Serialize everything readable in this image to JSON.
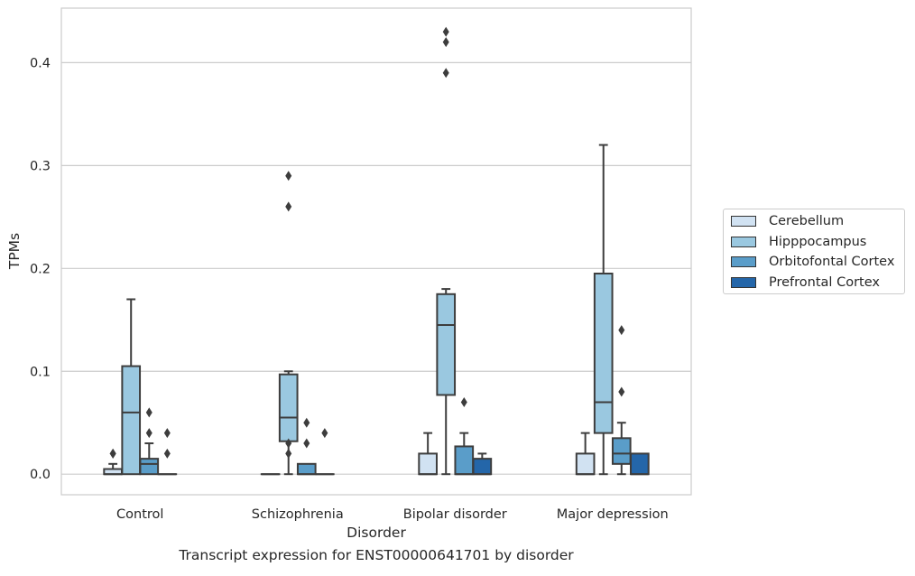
{
  "chart_data": {
    "type": "box",
    "xlabel": "Disorder",
    "ylabel": "TPMs",
    "caption": "Transcript expression for ENST00000641701 by disorder",
    "ylim": [
      -0.02,
      0.453
    ],
    "yticks": [
      0.0,
      0.1,
      0.2,
      0.3,
      0.4
    ],
    "ytick_labels": [
      "0.0",
      "0.1",
      "0.2",
      "0.3",
      "0.4"
    ],
    "grid": "horizontal",
    "legend_position": "right, outside",
    "categories": [
      "Control",
      "Schizophrenia",
      "Bipolar disorder",
      "Major depression"
    ],
    "series": [
      {
        "name": "Cerebellum",
        "color": "#d1e2f2",
        "boxes": [
          {
            "q1": 0.0,
            "median": 0.0,
            "q3": 0.005,
            "whisker_low": 0.0,
            "whisker_high": 0.01,
            "outliers": [
              0.02,
              0.02
            ]
          },
          {
            "q1": 0.0,
            "median": 0.0,
            "q3": 0.0,
            "whisker_low": 0.0,
            "whisker_high": 0.0,
            "outliers": []
          },
          {
            "q1": 0.0,
            "median": 0.0,
            "q3": 0.02,
            "whisker_low": 0.0,
            "whisker_high": 0.04,
            "outliers": []
          },
          {
            "q1": 0.0,
            "median": 0.0,
            "q3": 0.02,
            "whisker_low": 0.0,
            "whisker_high": 0.04,
            "outliers": []
          }
        ]
      },
      {
        "name": "Hipppocampus",
        "color": "#9ac8e0",
        "boxes": [
          {
            "q1": 0.0,
            "median": 0.06,
            "q3": 0.105,
            "whisker_low": 0.0,
            "whisker_high": 0.17,
            "outliers": []
          },
          {
            "q1": 0.032,
            "median": 0.055,
            "q3": 0.097,
            "whisker_low": 0.0,
            "whisker_high": 0.1,
            "outliers": [
              0.02,
              0.03,
              0.26,
              0.29
            ]
          },
          {
            "q1": 0.077,
            "median": 0.145,
            "q3": 0.175,
            "whisker_low": 0.0,
            "whisker_high": 0.18,
            "outliers": [
              0.39,
              0.42,
              0.43
            ]
          },
          {
            "q1": 0.04,
            "median": 0.07,
            "q3": 0.195,
            "whisker_low": 0.0,
            "whisker_high": 0.32,
            "outliers": []
          }
        ]
      },
      {
        "name": "Orbitofontal Cortex",
        "color": "#5a9dc9",
        "boxes": [
          {
            "q1": 0.0,
            "median": 0.01,
            "q3": 0.015,
            "whisker_low": 0.0,
            "whisker_high": 0.03,
            "outliers": [
              0.04,
              0.06
            ]
          },
          {
            "q1": 0.0,
            "median": 0.0,
            "q3": 0.01,
            "whisker_low": 0.0,
            "whisker_high": 0.01,
            "outliers": [
              0.03,
              0.05
            ]
          },
          {
            "q1": 0.0,
            "median": 0.0,
            "q3": 0.027,
            "whisker_low": 0.0,
            "whisker_high": 0.04,
            "outliers": [
              0.07
            ]
          },
          {
            "q1": 0.01,
            "median": 0.02,
            "q3": 0.035,
            "whisker_low": 0.0,
            "whisker_high": 0.05,
            "outliers": [
              0.08,
              0.14
            ]
          }
        ]
      },
      {
        "name": "Prefrontal Cortex",
        "color": "#2466a9",
        "boxes": [
          {
            "q1": 0.0,
            "median": 0.0,
            "q3": 0.0,
            "whisker_low": 0.0,
            "whisker_high": 0.0,
            "outliers": [
              0.02,
              0.04
            ]
          },
          {
            "q1": 0.0,
            "median": 0.0,
            "q3": 0.0,
            "whisker_low": 0.0,
            "whisker_high": 0.0,
            "outliers": [
              0.04
            ]
          },
          {
            "q1": 0.0,
            "median": 0.0,
            "q3": 0.015,
            "whisker_low": 0.0,
            "whisker_high": 0.02,
            "outliers": []
          },
          {
            "q1": 0.0,
            "median": 0.0,
            "q3": 0.02,
            "whisker_low": 0.0,
            "whisker_high": 0.02,
            "outliers": []
          }
        ]
      }
    ]
  }
}
